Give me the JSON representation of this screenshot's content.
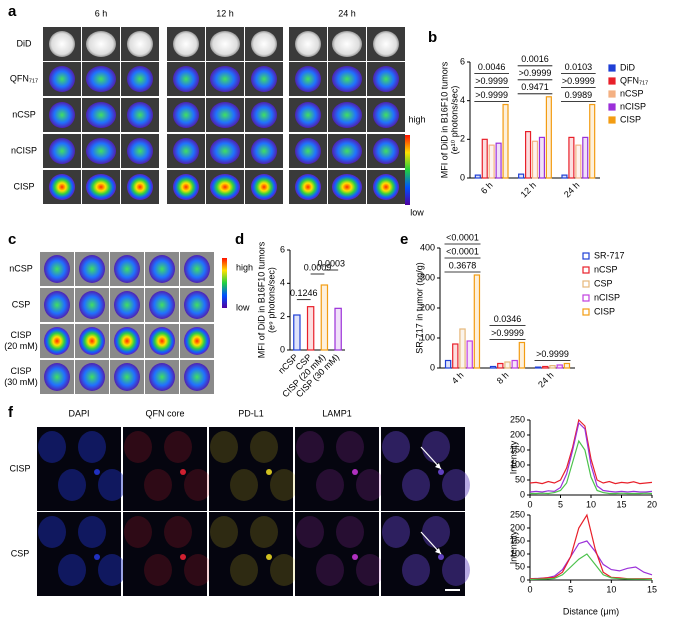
{
  "figure": {
    "a": {
      "label": "a",
      "times": [
        "6 h",
        "12 h",
        "24 h"
      ],
      "rows": [
        "DiD",
        "QFN₇₁₇",
        "nCSP",
        "nCISP",
        "CISP"
      ],
      "high": "high",
      "low": "low"
    },
    "c": {
      "label": "c",
      "rows": [
        [
          "nCSP"
        ],
        [
          "CSP"
        ],
        [
          "CISP",
          "(20 mM)"
        ],
        [
          "CISP",
          "(30 mM)"
        ]
      ],
      "high": "high",
      "low": "low"
    },
    "f": {
      "label": "f",
      "columns": [
        "DAPI",
        "QFN core",
        "PD-L1",
        "LAMP1"
      ],
      "rows": [
        "CISP",
        "CSP"
      ]
    }
  },
  "chart_data": [
    {
      "type": "bar",
      "label": "b",
      "ylabel": [
        "MFI of DiD in B16F10 tumors",
        "(e¹⁰ photons/sec)"
      ],
      "categories": [
        "6 h",
        "12 h",
        "24 h"
      ],
      "series": [
        {
          "name": "DiD",
          "color": "#1f3fd6",
          "values": [
            0.15,
            0.2,
            0.15
          ]
        },
        {
          "name": "QFN₇₁₇",
          "color": "#e8202a",
          "values": [
            2.0,
            2.4,
            2.1
          ]
        },
        {
          "name": "nCSP",
          "color": "#f4b183",
          "values": [
            1.7,
            1.9,
            1.7
          ]
        },
        {
          "name": "nCISP",
          "color": "#9b30d9",
          "values": [
            1.8,
            2.1,
            2.1
          ]
        },
        {
          "name": "CISP",
          "color": "#f39c12",
          "values": [
            3.8,
            4.2,
            3.8
          ]
        }
      ],
      "ylim": [
        0,
        6
      ],
      "yticks": [
        0,
        2,
        4,
        6
      ],
      "annotations": [
        [
          ">0.9999",
          ">0.9999",
          "0.0046"
        ],
        [
          "0.9471",
          ">0.9999",
          "0.0016"
        ],
        [
          "0.9989",
          ">0.9999",
          "0.0103"
        ]
      ]
    },
    {
      "type": "bar",
      "label": "d",
      "ylabel": [
        "MFI of DiD in B16F10 tumors",
        "(e⁹ photons/sec)"
      ],
      "categories": [
        "nCSP",
        "CSP",
        "CISP (20 mM)",
        "CISP (30 mM)"
      ],
      "values": [
        2.1,
        2.6,
        3.9,
        2.5
      ],
      "colors": [
        "#1f3fd6",
        "#e8202a",
        "#f39c12",
        "#9b30d9"
      ],
      "ylim": [
        0,
        6
      ],
      "yticks": [
        0,
        2,
        4,
        6
      ],
      "annotations": [
        "0.1246",
        "0.0009",
        "0.0003"
      ]
    },
    {
      "type": "bar",
      "label": "e",
      "ylabel": [
        "SR-717 in tumor (ng/g)"
      ],
      "categories": [
        "4 h",
        "8 h",
        "24 h"
      ],
      "series": [
        {
          "name": "SR-717",
          "color": "#1f3fd6",
          "values": [
            25,
            5,
            3
          ]
        },
        {
          "name": "nCSP",
          "color": "#e8202a",
          "values": [
            80,
            15,
            5
          ]
        },
        {
          "name": "CSP",
          "color": "#e6b87a",
          "values": [
            130,
            20,
            8
          ]
        },
        {
          "name": "nCISP",
          "color": "#c040e0",
          "values": [
            90,
            25,
            10
          ]
        },
        {
          "name": "CISP",
          "color": "#f39c12",
          "values": [
            310,
            85,
            15
          ]
        }
      ],
      "ylim": [
        0,
        400
      ],
      "yticks": [
        0,
        100,
        200,
        300,
        400
      ],
      "annotations": [
        [
          "0.3678",
          "<0.0001",
          "<0.0001"
        ],
        [
          ">0.9999",
          "0.0346"
        ],
        [
          ">0.9999"
        ]
      ]
    },
    {
      "type": "line",
      "ylabel": [
        "Intensity"
      ],
      "x": [
        0,
        1,
        2,
        3,
        4,
        5,
        6,
        7,
        8,
        9,
        10,
        11,
        12,
        13,
        14,
        15,
        16,
        17,
        18,
        19,
        20
      ],
      "xlim": [
        0,
        20
      ],
      "xticks": [
        0,
        5,
        10,
        15,
        20
      ],
      "ylim": [
        0,
        250
      ],
      "yticks": [
        0,
        50,
        100,
        150,
        200,
        250
      ],
      "series": [
        {
          "color": "#e8202a",
          "values": [
            40,
            42,
            38,
            45,
            40,
            50,
            90,
            160,
            250,
            230,
            120,
            50,
            40,
            45,
            38,
            42,
            40,
            44,
            38,
            40,
            42
          ]
        },
        {
          "color": "#9b30d9",
          "values": [
            10,
            12,
            10,
            14,
            12,
            25,
            70,
            150,
            240,
            220,
            100,
            30,
            15,
            12,
            10,
            12,
            10,
            12,
            10,
            10,
            12
          ]
        },
        {
          "color": "#4cc24c",
          "values": [
            5,
            5,
            6,
            5,
            8,
            15,
            40,
            110,
            180,
            150,
            60,
            15,
            8,
            5,
            5,
            6,
            5,
            5,
            5,
            6,
            5
          ]
        }
      ]
    },
    {
      "type": "line",
      "ylabel": [
        "Intensity"
      ],
      "xlabel": "Distance (μm)",
      "x": [
        0,
        1,
        2,
        3,
        4,
        5,
        6,
        7,
        8,
        9,
        10,
        11,
        12,
        13,
        14,
        15
      ],
      "xlim": [
        0,
        15
      ],
      "xticks": [
        0,
        5,
        10,
        15
      ],
      "ylim": [
        0,
        250
      ],
      "yticks": [
        0,
        50,
        100,
        150,
        200,
        250
      ],
      "series": [
        {
          "color": "#9b30d9",
          "values": [
            5,
            6,
            8,
            15,
            40,
            90,
            140,
            150,
            110,
            60,
            40,
            35,
            45,
            50,
            30,
            20
          ]
        },
        {
          "color": "#e8202a",
          "values": [
            5,
            5,
            8,
            10,
            30,
            90,
            200,
            250,
            120,
            30,
            10,
            8,
            5,
            5,
            5,
            5
          ]
        },
        {
          "color": "#4cc24c",
          "values": [
            2,
            3,
            4,
            6,
            20,
            50,
            80,
            100,
            60,
            20,
            8,
            5,
            4,
            3,
            3,
            2
          ]
        }
      ]
    }
  ]
}
